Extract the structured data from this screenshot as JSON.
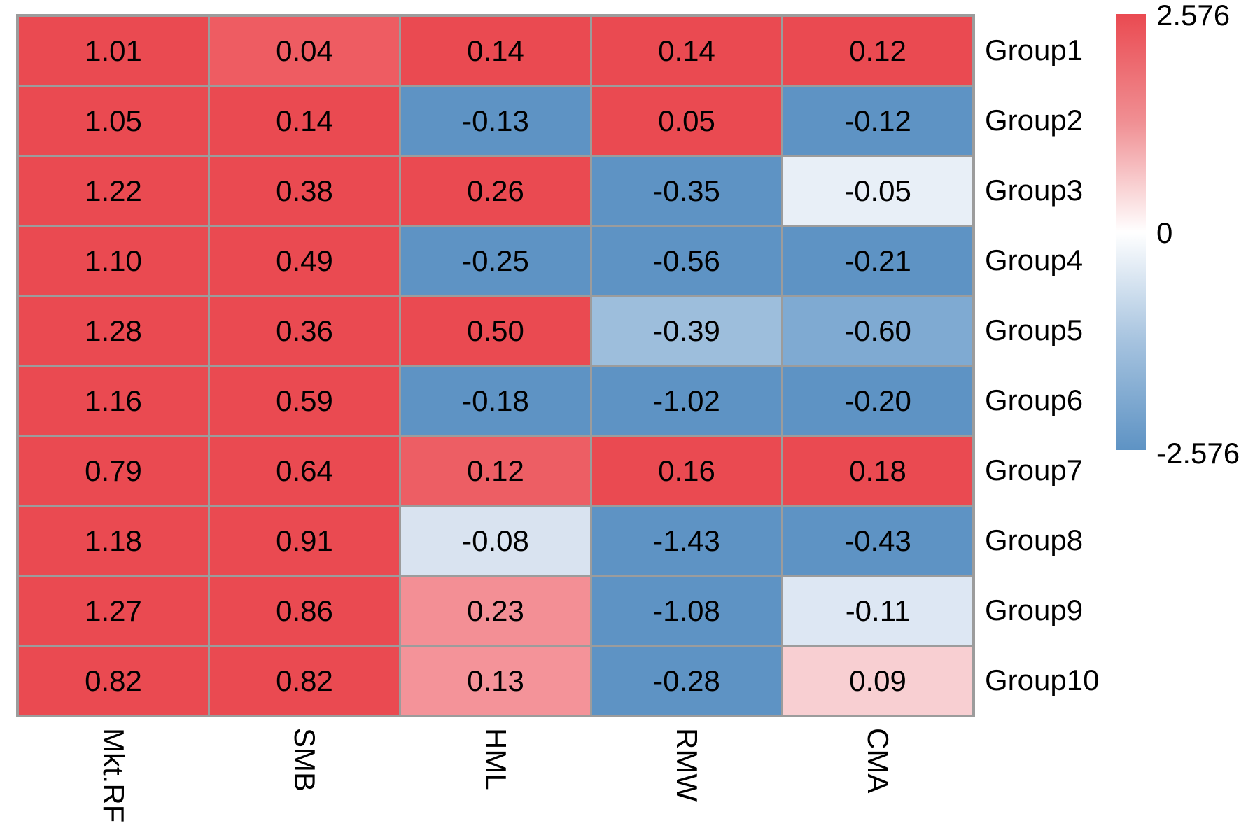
{
  "chart_data": {
    "type": "heatmap",
    "title": "",
    "columns": [
      "Mkt.RF",
      "SMB",
      "HML",
      "RMW",
      "CMA"
    ],
    "rows": [
      "Group1",
      "Group2",
      "Group3",
      "Group4",
      "Group5",
      "Group6",
      "Group7",
      "Group8",
      "Group9",
      "Group10"
    ],
    "values": [
      [
        "1.01",
        "0.04",
        "0.14",
        "0.14",
        "0.12"
      ],
      [
        "1.05",
        "0.14",
        "-0.13",
        "0.05",
        "-0.12"
      ],
      [
        "1.22",
        "0.38",
        "0.26",
        "-0.35",
        "-0.05"
      ],
      [
        "1.10",
        "0.49",
        "-0.25",
        "-0.56",
        "-0.21"
      ],
      [
        "1.28",
        "0.36",
        "0.50",
        "-0.39",
        "-0.60"
      ],
      [
        "1.16",
        "0.59",
        "-0.18",
        "-1.02",
        "-0.20"
      ],
      [
        "0.79",
        "0.64",
        "0.12",
        "0.16",
        "0.18"
      ],
      [
        "1.18",
        "0.91",
        "-0.08",
        "-1.43",
        "-0.43"
      ],
      [
        "1.27",
        "0.86",
        "0.23",
        "-1.08",
        "-0.11"
      ],
      [
        "0.82",
        "0.82",
        "0.13",
        "-0.28",
        "0.09"
      ]
    ],
    "cell_colors": [
      [
        "#ea4a51",
        "#ee5c62",
        "#ea4a51",
        "#ea4a51",
        "#ea4a51"
      ],
      [
        "#ea4a51",
        "#ea4a51",
        "#5e93c4",
        "#ea4a51",
        "#5e93c4"
      ],
      [
        "#ea4a51",
        "#ea4a51",
        "#ea4a51",
        "#5e93c4",
        "#e8eff7"
      ],
      [
        "#ea4a51",
        "#ea4a51",
        "#5e93c4",
        "#5e93c4",
        "#5e93c4"
      ],
      [
        "#ea4a51",
        "#ea4a51",
        "#ea4a51",
        "#9dbedc",
        "#7faad2"
      ],
      [
        "#ea4a51",
        "#ea4a51",
        "#5e93c4",
        "#5e93c4",
        "#5e93c4"
      ],
      [
        "#ea4a51",
        "#ea4a51",
        "#ed5e64",
        "#ea4a51",
        "#ea4a51"
      ],
      [
        "#ea4a51",
        "#ea4a51",
        "#d9e3f0",
        "#5e93c4",
        "#5e93c4"
      ],
      [
        "#ea4a51",
        "#ea4a51",
        "#f38f95",
        "#5e93c4",
        "#dde7f3"
      ],
      [
        "#ea4a51",
        "#ea4a51",
        "#f49399",
        "#5e93c4",
        "#f8cfd2"
      ]
    ],
    "colorbar_range": [
      -2.576,
      2.576
    ],
    "legend": {
      "max_label": "2.576",
      "mid_label": "0",
      "min_label": "-2.576",
      "max_color": "#ea4a51",
      "mid_color": "#ffffff",
      "min_color": "#5e93c4"
    },
    "grid_line_color": "#9c9c9c",
    "text_color": "#000000",
    "legend_position": "right",
    "layout_hints": {
      "x_tick_rotation": "vertical",
      "row_labels_side": "right"
    }
  }
}
